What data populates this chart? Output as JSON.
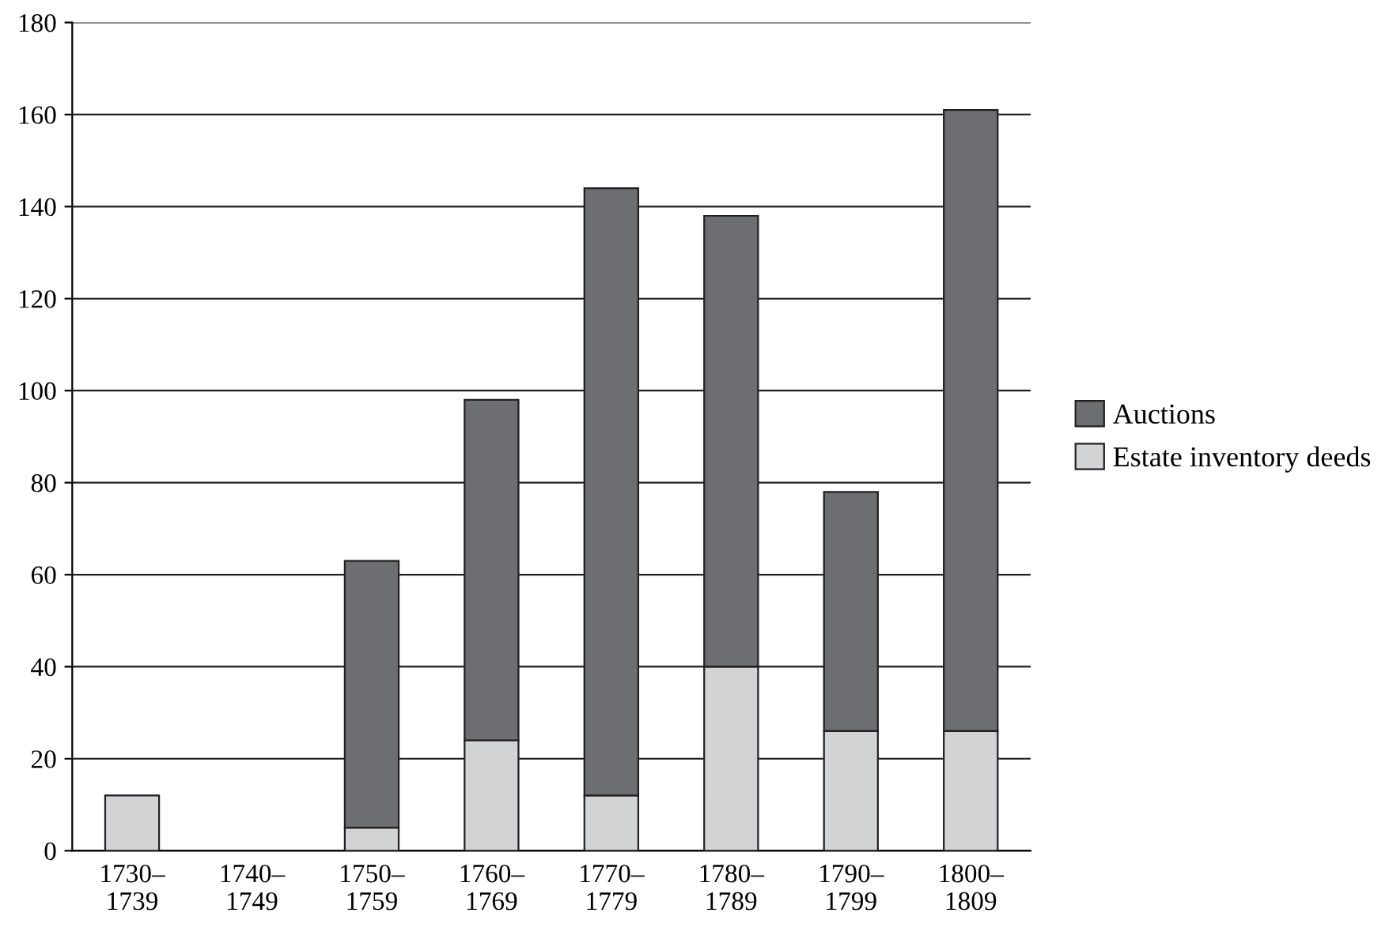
{
  "chart_data": {
    "type": "bar",
    "stacked": true,
    "categories": [
      "1730–\n1739",
      "1740–\n1749",
      "1750–\n1759",
      "1760–\n1769",
      "1770–\n1779",
      "1780–\n1789",
      "1790–\n1799",
      "1800–\n1809"
    ],
    "series": [
      {
        "name": "Estate inventory deeds",
        "color": "#d1d3d4",
        "values": [
          12,
          null,
          5,
          24,
          12,
          40,
          26,
          26
        ]
      },
      {
        "name": "Auctions",
        "color": "#6d6e71",
        "values": [
          null,
          null,
          58,
          74,
          132,
          98,
          52,
          135
        ]
      }
    ],
    "ylim": [
      0,
      180
    ],
    "yticks": [
      0,
      20,
      40,
      60,
      80,
      100,
      120,
      140,
      160,
      180
    ],
    "grid": "y",
    "legend": "right"
  }
}
